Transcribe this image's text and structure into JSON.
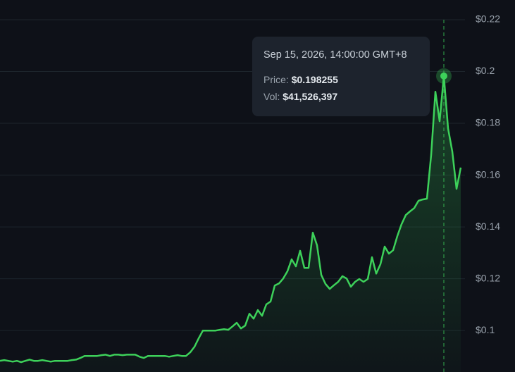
{
  "chart_data": {
    "type": "line",
    "series": [
      {
        "color": "#3dd15a",
        "values": [
          0.0883,
          0.0886,
          0.0883,
          0.088,
          0.0883,
          0.0878,
          0.0883,
          0.0888,
          0.0883,
          0.0883,
          0.0886,
          0.0883,
          0.088,
          0.0883,
          0.0883,
          0.0883,
          0.0883,
          0.0886,
          0.0888,
          0.0894,
          0.0902,
          0.0902,
          0.0902,
          0.0902,
          0.0905,
          0.0907,
          0.0902,
          0.0907,
          0.0907,
          0.0905,
          0.0907,
          0.0907,
          0.0907,
          0.0899,
          0.0894,
          0.0902,
          0.0902,
          0.0902,
          0.0902,
          0.0902,
          0.0899,
          0.0902,
          0.0905,
          0.0902,
          0.0902,
          0.0916,
          0.0937,
          0.097,
          0.1,
          0.1,
          0.1,
          0.1,
          0.1003,
          0.1005,
          0.1003,
          0.1016,
          0.103,
          0.1008,
          0.1019,
          0.1065,
          0.1046,
          0.1079,
          0.1057,
          0.1101,
          0.1112,
          0.1174,
          0.1182,
          0.1201,
          0.1229,
          0.1275,
          0.1248,
          0.1308,
          0.1242,
          0.1242,
          0.1378,
          0.1329,
          0.1215,
          0.118,
          0.1161,
          0.1175,
          0.1188,
          0.121,
          0.1201,
          0.1169,
          0.1188,
          0.1199,
          0.1188,
          0.1199,
          0.1283,
          0.122,
          0.1256,
          0.1324,
          0.1297,
          0.131,
          0.1365,
          0.1411,
          0.1446,
          0.146,
          0.1473,
          0.1501,
          0.1506,
          0.1509,
          0.1678,
          0.1922,
          0.1808,
          0.198255,
          0.178,
          0.1691,
          0.1547,
          0.1629
        ]
      }
    ],
    "ylim": [
      0.084,
      0.2276
    ],
    "yticks": [
      {
        "value": 0.1,
        "label": "$0.1"
      },
      {
        "value": 0.12,
        "label": "$0.12"
      },
      {
        "value": 0.14,
        "label": "$0.14"
      },
      {
        "value": 0.16,
        "label": "$0.16"
      },
      {
        "value": 0.18,
        "label": "$0.18"
      },
      {
        "value": 0.2,
        "label": "$0.2"
      },
      {
        "value": 0.22,
        "label": "$0.22"
      }
    ],
    "grid": true,
    "tooltip": {
      "date": "Sep 15, 2026, 14:00:00 GMT+8",
      "price_label": "Price:",
      "price": {
        "value": 0.198255,
        "label": "$0.198255"
      },
      "vol_label": "Vol:",
      "vol": {
        "value": 41526397,
        "label": "$41,526,397"
      }
    }
  }
}
